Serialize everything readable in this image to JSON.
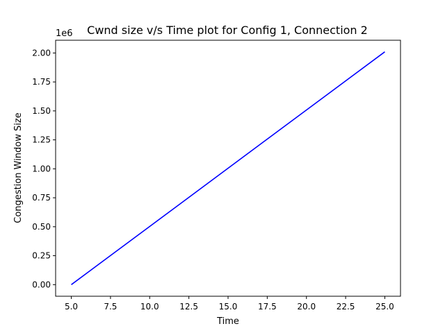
{
  "chart_data": {
    "type": "line",
    "title": "Cwnd size v/s Time plot for Config 1, Connection 2",
    "xlabel": "Time",
    "ylabel": "Congestion Window Size",
    "y_offset_label": "1e6",
    "xlim": [
      4.0,
      26.0
    ],
    "ylim": [
      -100000,
      2110000
    ],
    "x_ticks": [
      5.0,
      7.5,
      10.0,
      12.5,
      15.0,
      17.5,
      20.0,
      22.5,
      25.0
    ],
    "x_tick_labels": [
      "5.0",
      "7.5",
      "10.0",
      "12.5",
      "15.0",
      "17.5",
      "20.0",
      "22.5",
      "25.0"
    ],
    "y_ticks": [
      0,
      250000,
      500000,
      750000,
      1000000,
      1250000,
      1500000,
      1750000,
      2000000
    ],
    "y_tick_labels": [
      "0.00",
      "0.25",
      "0.50",
      "0.75",
      "1.00",
      "1.25",
      "1.50",
      "1.75",
      "2.00"
    ],
    "grid": false,
    "legend": "none",
    "series": [
      {
        "color": "#0000ff",
        "x": [
          5.0,
          25.0
        ],
        "y": [
          0,
          2010000
        ]
      }
    ]
  }
}
